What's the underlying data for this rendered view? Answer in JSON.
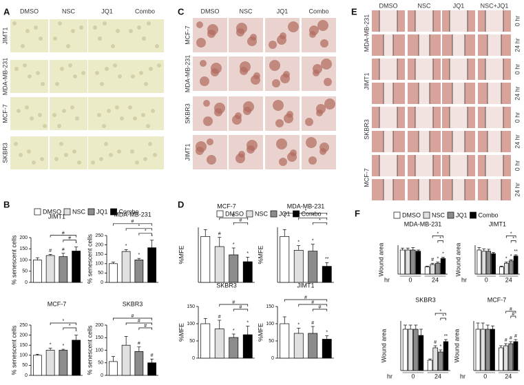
{
  "figure": {
    "A": {
      "label": "A",
      "columns": [
        "DMSO",
        "NSC",
        "JQ1",
        "Combo"
      ],
      "rows": [
        "JIMT1",
        "MDA-MB-231",
        "MCF-7",
        "SKBR3"
      ]
    },
    "C": {
      "label": "C",
      "columns": [
        "DMSO",
        "NSC",
        "JQ1",
        "Combo"
      ],
      "rows": [
        "MCF-7",
        "MDA-MB-231",
        "SKBR3",
        "JIMT1"
      ]
    },
    "E": {
      "label": "E",
      "columns": [
        "DMSO",
        "NSC",
        "JQ1",
        "NSC+JQ1"
      ],
      "rows": [
        "MDA-MB-231",
        "JIMT1",
        "SKBR3",
        "MCF-7"
      ],
      "times": [
        "0 hr",
        "24 hr"
      ]
    },
    "B": {
      "label": "B",
      "legend": [
        {
          "name": "DMSO",
          "color": "#ffffff"
        },
        {
          "name": "NSC",
          "color": "#e0e0e0"
        },
        {
          "name": "JQ1",
          "color": "#8c8c8c"
        },
        {
          "name": "Combo",
          "color": "#000000"
        }
      ]
    },
    "D": {
      "label": "D",
      "legend": [
        {
          "name": "DMSO",
          "color": "#ffffff"
        },
        {
          "name": "NSC",
          "color": "#e0e0e0"
        },
        {
          "name": "JQ1",
          "color": "#8c8c8c"
        },
        {
          "name": "Combo",
          "color": "#000000"
        }
      ]
    },
    "F": {
      "label": "F",
      "legend": [
        {
          "name": "DMSO",
          "color": "#ffffff"
        },
        {
          "name": "NSC",
          "color": "#e0e0e0"
        },
        {
          "name": "JQ1",
          "color": "#8c8c8c"
        },
        {
          "name": "Combo",
          "color": "#000000"
        }
      ]
    }
  },
  "chart_data": [
    {
      "type": "bar",
      "title": "JIMT1",
      "ylabel": "% senescent cells",
      "ylim": [
        0,
        200
      ],
      "yticks": [
        0,
        50,
        100,
        150,
        200
      ],
      "values": [
        100,
        120,
        115,
        140
      ],
      "errors": [
        10,
        5,
        15,
        18
      ],
      "markers": [
        null,
        "#",
        "#",
        "*"
      ],
      "brackets": [
        {
          "from": 1,
          "to": 3,
          "label": "#"
        },
        {
          "from": 2,
          "to": 3,
          "label": "#"
        }
      ]
    },
    {
      "type": "bar",
      "title": "MDA-MB-231",
      "ylabel": "% senescent cells",
      "ylim": [
        0,
        250
      ],
      "yticks": [
        0,
        50,
        100,
        150,
        200,
        250
      ],
      "values": [
        100,
        165,
        120,
        185
      ],
      "errors": [
        8,
        10,
        8,
        40
      ],
      "markers": [
        null,
        "*",
        "*",
        "*"
      ],
      "brackets": [
        {
          "from": 0,
          "to": 3,
          "label": "#"
        },
        {
          "from": 1,
          "to": 3,
          "label": "*"
        },
        {
          "from": 2,
          "to": 3,
          "label": "*"
        }
      ]
    },
    {
      "type": "bar",
      "title": "MCF-7",
      "ylabel": "% senescent cells",
      "ylim": [
        0,
        250
      ],
      "yticks": [
        0,
        50,
        100,
        150,
        200,
        250
      ],
      "values": [
        100,
        125,
        125,
        175
      ],
      "errors": [
        5,
        10,
        5,
        25
      ],
      "markers": [
        null,
        "*",
        "*",
        "*"
      ],
      "brackets": [
        {
          "from": 1,
          "to": 3,
          "label": "*"
        },
        {
          "from": 2,
          "to": 3,
          "label": "*"
        }
      ]
    },
    {
      "type": "bar",
      "title": "SKBR3",
      "ylabel": "% senescent cells",
      "ylim": [
        0,
        200
      ],
      "yticks": [
        0,
        50,
        100,
        150,
        200
      ],
      "values": [
        55,
        120,
        95,
        50
      ],
      "errors": [
        20,
        35,
        18,
        15
      ],
      "markers": [
        null,
        null,
        "#",
        "#"
      ],
      "brackets": [
        {
          "from": 0,
          "to": 3,
          "label": "#"
        },
        {
          "from": 1,
          "to": 3,
          "label": "#"
        },
        {
          "from": 2,
          "to": 3,
          "label": "#"
        }
      ]
    },
    {
      "type": "bar",
      "title": "MCF-7",
      "ylabel": "%MFE",
      "ylim": [
        0,
        120
      ],
      "values": [
        100,
        78,
        60,
        45
      ],
      "errors": [
        15,
        20,
        15,
        10
      ],
      "markers": [
        null,
        "#",
        "*",
        "*"
      ],
      "brackets": [
        {
          "from": 1,
          "to": 3,
          "label": "#"
        },
        {
          "from": 2,
          "to": 3,
          "label": "#"
        }
      ]
    },
    {
      "type": "bar",
      "title": "MDA-MB-231",
      "ylabel": "%MFE",
      "ylim": [
        0,
        120
      ],
      "values": [
        100,
        70,
        68,
        35
      ],
      "errors": [
        15,
        10,
        15,
        8
      ],
      "markers": [
        null,
        "*",
        "*",
        "**"
      ],
      "brackets": [
        {
          "from": 0,
          "to": 3,
          "label": "*"
        },
        {
          "from": 1,
          "to": 3,
          "label": "*"
        },
        {
          "from": 2,
          "to": 3,
          "label": "*"
        }
      ]
    },
    {
      "type": "bar",
      "title": "SKBR3",
      "ylabel": "%MFE",
      "ylim": [
        0,
        150
      ],
      "yticks": [
        0,
        50,
        100,
        150
      ],
      "values": [
        100,
        85,
        60,
        68
      ],
      "errors": [
        15,
        25,
        10,
        25
      ],
      "markers": [
        null,
        "#",
        "*",
        "*"
      ],
      "brackets": [
        {
          "from": 1,
          "to": 3,
          "label": "#"
        },
        {
          "from": 2,
          "to": 3,
          "label": "#"
        }
      ]
    },
    {
      "type": "bar",
      "title": "JIMT1",
      "ylabel": "%MFE",
      "ylim": [
        0,
        150
      ],
      "yticks": [
        0,
        50,
        100,
        150
      ],
      "values": [
        100,
        72,
        72,
        55
      ],
      "errors": [
        20,
        15,
        20,
        10
      ],
      "markers": [
        null,
        "*",
        "#",
        "*"
      ],
      "brackets": [
        {
          "from": 0,
          "to": 3,
          "label": "#"
        },
        {
          "from": 1,
          "to": 3,
          "label": "#"
        },
        {
          "from": 2,
          "to": 3,
          "label": "#"
        }
      ]
    },
    {
      "type": "grouped",
      "title": "MDA-MB-231",
      "ylabel": "Wound area",
      "xlabel": "hr",
      "categories": [
        "0",
        "24"
      ],
      "ylim": [
        0,
        120
      ],
      "series": [
        {
          "values": [
            100,
            30
          ],
          "errors": [
            8,
            3
          ],
          "markers": [
            null,
            null
          ]
        },
        {
          "values": [
            100,
            40
          ],
          "errors": [
            8,
            5
          ],
          "markers": [
            null,
            "#"
          ]
        },
        {
          "values": [
            100,
            45
          ],
          "errors": [
            10,
            5
          ],
          "markers": [
            null,
            "*"
          ]
        },
        {
          "values": [
            95,
            65
          ],
          "errors": [
            5,
            5
          ],
          "markers": [
            null,
            "*"
          ]
        }
      ],
      "brackets": [
        {
          "from": 1,
          "to": 3,
          "label": "*"
        },
        {
          "from": 2,
          "to": 3,
          "label": "*"
        }
      ]
    },
    {
      "type": "grouped",
      "title": "JIMT1",
      "ylabel": "Wound area",
      "xlabel": "hr",
      "categories": [
        "0",
        "24"
      ],
      "ylim": [
        0,
        120
      ],
      "series": [
        {
          "values": [
            100,
            30
          ],
          "errors": [
            10,
            3
          ],
          "markers": [
            null,
            null
          ]
        },
        {
          "values": [
            95,
            45
          ],
          "errors": [
            10,
            5
          ],
          "markers": [
            null,
            "*"
          ]
        },
        {
          "values": [
            95,
            55
          ],
          "errors": [
            8,
            5
          ],
          "markers": [
            null,
            "*"
          ]
        },
        {
          "values": [
            85,
            75
          ],
          "errors": [
            5,
            5
          ],
          "markers": [
            null,
            "**"
          ]
        }
      ],
      "brackets": [
        {
          "from": 1,
          "to": 3,
          "label": "*"
        },
        {
          "from": 2,
          "to": 3,
          "label": "*"
        }
      ]
    },
    {
      "type": "grouped",
      "title": "SKBR3",
      "ylabel": "Wound area",
      "xlabel": "hr",
      "categories": [
        "0",
        "24"
      ],
      "ylim": [
        0,
        120
      ],
      "series": [
        {
          "values": [
            100,
            25
          ],
          "errors": [
            10,
            3
          ],
          "markers": [
            null,
            null
          ]
        },
        {
          "values": [
            100,
            55
          ],
          "errors": [
            10,
            5
          ],
          "markers": [
            null,
            "#"
          ]
        },
        {
          "values": [
            100,
            45
          ],
          "errors": [
            10,
            5
          ],
          "markers": [
            null,
            "*"
          ]
        },
        {
          "values": [
            85,
            70
          ],
          "errors": [
            15,
            5
          ],
          "markers": [
            null,
            "**"
          ]
        }
      ],
      "brackets": [
        {
          "from": 1,
          "to": 3,
          "label": "*"
        },
        {
          "from": 2,
          "to": 3,
          "label": "*"
        }
      ]
    },
    {
      "type": "grouped",
      "title": "MCF-7",
      "ylabel": "Wound area",
      "xlabel": "hr",
      "categories": [
        "0",
        "24"
      ],
      "ylim": [
        0,
        120
      ],
      "series": [
        {
          "values": [
            100,
            55
          ],
          "errors": [
            15,
            5
          ],
          "markers": [
            null,
            null
          ]
        },
        {
          "values": [
            100,
            60
          ],
          "errors": [
            15,
            5
          ],
          "markers": [
            null,
            "#"
          ]
        },
        {
          "values": [
            100,
            65
          ],
          "errors": [
            10,
            5
          ],
          "markers": [
            null,
            "#"
          ]
        },
        {
          "values": [
            100,
            70
          ],
          "errors": [
            8,
            5
          ],
          "markers": [
            null,
            "#"
          ]
        }
      ],
      "brackets": [
        {
          "from": 1,
          "to": 3,
          "label": "#"
        },
        {
          "from": 2,
          "to": 3,
          "label": "#"
        }
      ]
    }
  ]
}
